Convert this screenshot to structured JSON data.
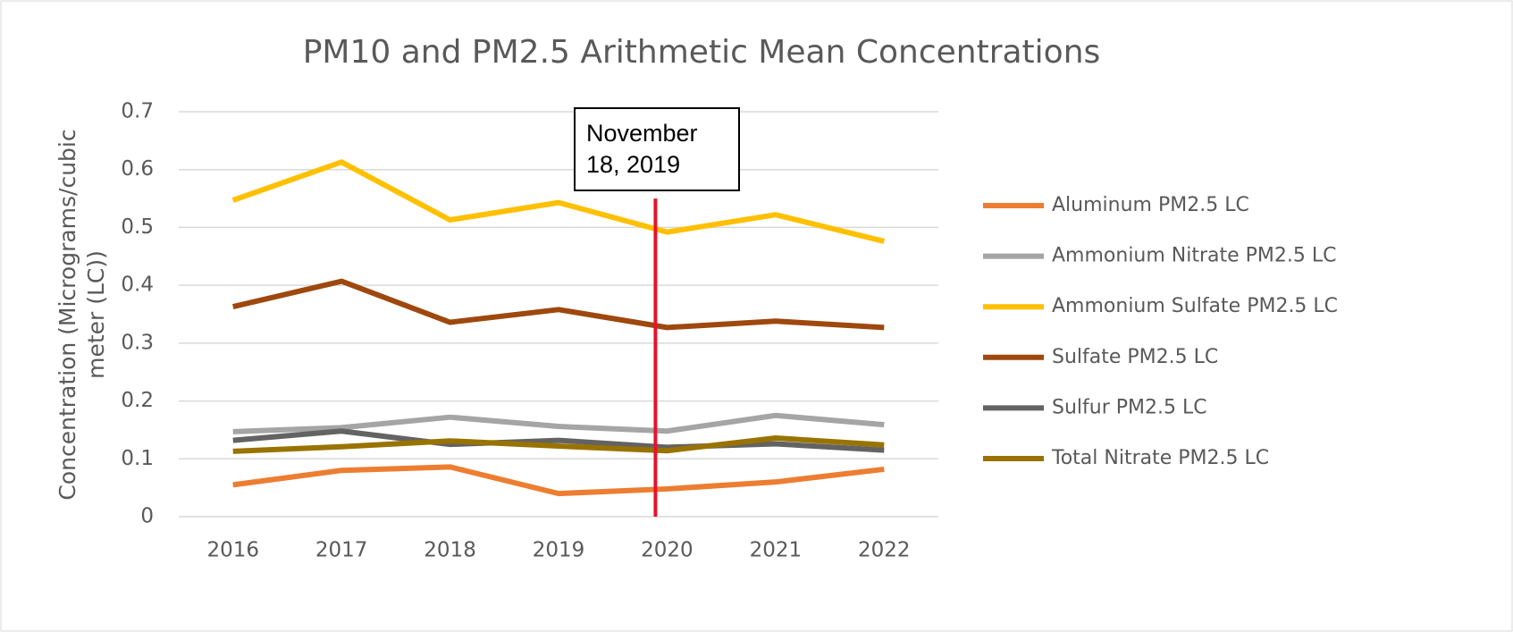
{
  "chart_data": {
    "type": "line",
    "title": "PM10 and PM2.5 Arithmetic Mean Concentrations",
    "y_label": "Concentration (Micrograms/cubic meter (LC))",
    "categories": [
      "2016",
      "2017",
      "2018",
      "2019",
      "2020",
      "2021",
      "2022"
    ],
    "series": [
      {
        "name": "Aluminum PM2.5 LC",
        "color": "#ED7D31",
        "values": [
          0.055,
          0.08,
          0.086,
          0.04,
          0.048,
          0.06,
          0.082
        ]
      },
      {
        "name": "Ammonium Nitrate PM2.5 LC",
        "color": "#A5A5A5",
        "values": [
          0.147,
          0.154,
          0.172,
          0.156,
          0.148,
          0.175,
          0.159
        ]
      },
      {
        "name": "Ammonium Sulfate PM2.5 LC",
        "color": "#FFC000",
        "values": [
          0.547,
          0.613,
          0.513,
          0.543,
          0.492,
          0.522,
          0.476
        ]
      },
      {
        "name": "Sulfate PM2.5 LC",
        "color": "#9E480E",
        "values": [
          0.363,
          0.407,
          0.336,
          0.358,
          0.327,
          0.338,
          0.327
        ]
      },
      {
        "name": "Sulfur PM2.5 LC",
        "color": "#636363",
        "values": [
          0.132,
          0.148,
          0.125,
          0.132,
          0.12,
          0.126,
          0.115
        ]
      },
      {
        "name": "Total Nitrate PM2.5 LC",
        "color": "#997300",
        "values": [
          0.113,
          0.121,
          0.131,
          0.122,
          0.114,
          0.136,
          0.124
        ]
      }
    ],
    "ylim": [
      0,
      0.7
    ],
    "yticks": [
      0,
      0.1,
      0.2,
      0.3,
      0.4,
      0.5,
      0.6,
      0.7
    ],
    "grid": true,
    "legend": "right",
    "annotation": {
      "text": "November 18, 2019",
      "x": "2020",
      "y": 0.55,
      "color": "#E8112D"
    }
  }
}
